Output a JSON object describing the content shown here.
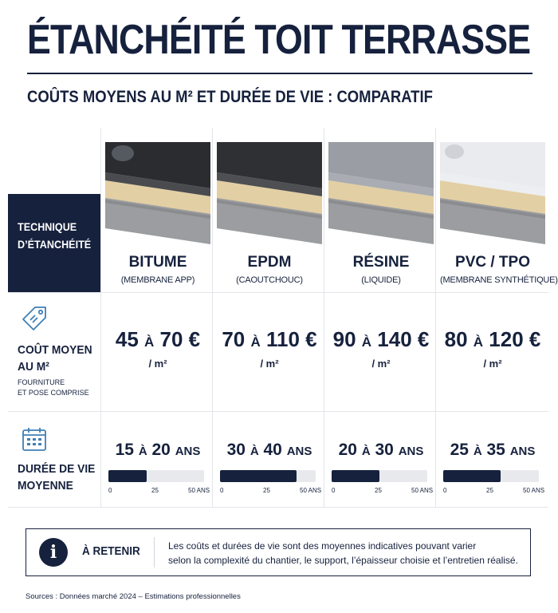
{
  "title": "ÉTANCHÉITÉ TOIT TERRASSE",
  "subtitle": "COÛTS MOYENS AU M² ET DURÉE DE VIE : COMPARATIF",
  "tech_header": "TECHNIQUE\nD’ÉTANCHÉITÉ",
  "rows": {
    "cost": {
      "label_line1": "COÛT MOYEN",
      "label_line2": "AU M²",
      "note_line1": "FOURNITURE",
      "note_line2": "ET POSE COMPRISE",
      "icon": "price-tag-icon"
    },
    "life": {
      "label_line1": "DURÉE DE VIE",
      "label_line2": "MOYENNE",
      "icon": "calendar-icon"
    }
  },
  "separator_word": "À",
  "unit": "/ m²",
  "years_unit": "ANS",
  "scale_ticks": [
    "0",
    "25",
    "50 ANS"
  ],
  "scale_max": 50,
  "columns": [
    {
      "name": "BITUME",
      "sub": "(MEMBRANE APP)",
      "cost_min": "45",
      "cost_max": "70 €",
      "life_min": "15",
      "life_max": "20",
      "life_fill": 0.4,
      "top_color": "#2a2c30"
    },
    {
      "name": "EPDM",
      "sub": "(CAOUTCHOUC)",
      "cost_min": "70",
      "cost_max": "110 €",
      "life_min": "30",
      "life_max": "40",
      "life_fill": 0.8,
      "top_color": "#2e3034"
    },
    {
      "name": "RÉSINE",
      "sub": "(LIQUIDE)",
      "cost_min": "90",
      "cost_max": "140 €",
      "life_min": "20",
      "life_max": "30",
      "life_fill": 0.5,
      "top_color": "#9a9ea4"
    },
    {
      "name": "PVC / TPO",
      "sub": "(MEMBRANE SYNTHÉTIQUE)",
      "cost_min": "80",
      "cost_max": "120 €",
      "life_min": "25",
      "life_max": "35",
      "life_fill": 0.6,
      "top_color": "#e9ebee"
    }
  ],
  "info": {
    "label": "À RETENIR",
    "line1": "Les coûts et durées de vie sont des moyennes indicatives pouvant varier",
    "line2": "selon la complexité du chantier, le support, l’épaisseur choisie et l’entretien réalisé."
  },
  "sources": "Sources : Données marché 2024 – Estimations professionnelles",
  "colors": {
    "navy": "#16213d",
    "track": "#e7e9ed",
    "insulation": "#e3cfa4",
    "concrete": "#9b9da0"
  }
}
